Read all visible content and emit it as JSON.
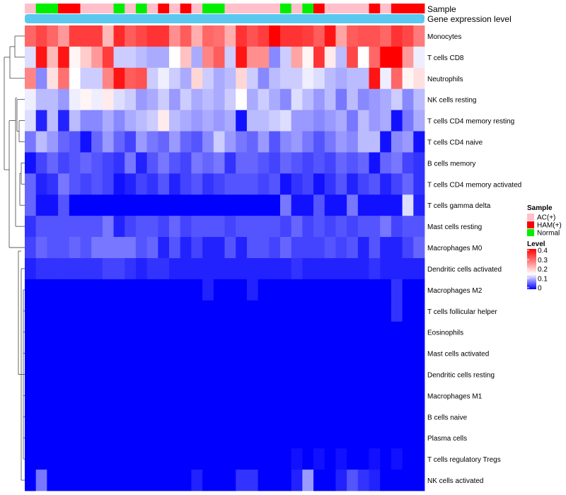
{
  "chart_data": {
    "type": "heatmap",
    "title": "",
    "annotation_tracks": {
      "sample_label": "Sample",
      "gene_expression_label": "Gene expression level",
      "gene_expression_color": "#5BC8F0"
    },
    "legend": {
      "placement": "right",
      "sample_title": "Sample",
      "sample_groups": [
        {
          "label": "AC(+)",
          "color": "#FFC0CB"
        },
        {
          "label": "HAM(+)",
          "color": "#FF0000"
        },
        {
          "label": "Normal",
          "color": "#00EE00"
        }
      ],
      "level_title": "Level",
      "level_ticks": [
        "0.4",
        "0.3",
        "0.2",
        "0.1",
        "0"
      ],
      "level_tick_values": [
        0.4,
        0.3,
        0.2,
        0.1,
        0.0
      ],
      "color_scale": {
        "low": "#0000FF",
        "mid": "#FFFFFF",
        "high": "#FF0000",
        "min": 0,
        "mid_value": 0.15,
        "max": 0.4
      }
    },
    "samples": [
      "AC(+)",
      "Normal",
      "Normal",
      "HAM(+)",
      "HAM(+)",
      "AC(+)",
      "AC(+)",
      "AC(+)",
      "Normal",
      "AC(+)",
      "Normal",
      "AC(+)",
      "HAM(+)",
      "AC(+)",
      "HAM(+)",
      "AC(+)",
      "Normal",
      "Normal",
      "AC(+)",
      "AC(+)",
      "AC(+)",
      "AC(+)",
      "AC(+)",
      "Normal",
      "AC(+)",
      "Normal",
      "HAM(+)",
      "AC(+)",
      "AC(+)",
      "AC(+)",
      "AC(+)",
      "HAM(+)",
      "AC(+)",
      "HAM(+)",
      "HAM(+)",
      "HAM(+)"
    ],
    "rows": [
      {
        "name": "Monocytes",
        "values": [
          0.3,
          0.33,
          0.3,
          0.25,
          0.34,
          0.34,
          0.34,
          0.22,
          0.36,
          0.31,
          0.33,
          0.35,
          0.35,
          0.26,
          0.31,
          0.23,
          0.3,
          0.29,
          0.23,
          0.35,
          0.32,
          0.34,
          0.4,
          0.35,
          0.35,
          0.34,
          0.31,
          0.38,
          0.24,
          0.31,
          0.32,
          0.32,
          0.3,
          0.35,
          0.33,
          0.28
        ]
      },
      {
        "name": "T cells CD8",
        "values": [
          0.13,
          0.38,
          0.22,
          0.38,
          0.16,
          0.2,
          0.25,
          0.34,
          0.12,
          0.12,
          0.11,
          0.1,
          0.1,
          0.15,
          0.21,
          0.1,
          0.27,
          0.31,
          0.12,
          0.38,
          0.26,
          0.26,
          0.08,
          0.12,
          0.24,
          0.16,
          0.35,
          0.17,
          0.11,
          0.33,
          0.15,
          0.3,
          0.4,
          0.4,
          0.25,
          0.14
        ]
      },
      {
        "name": "Neutrophils",
        "values": [
          0.27,
          0.08,
          0.18,
          0.29,
          0.15,
          0.12,
          0.12,
          0.27,
          0.38,
          0.31,
          0.32,
          0.12,
          0.14,
          0.12,
          0.1,
          0.19,
          0.12,
          0.1,
          0.11,
          0.19,
          0.12,
          0.08,
          0.11,
          0.12,
          0.12,
          0.14,
          0.13,
          0.11,
          0.1,
          0.11,
          0.11,
          0.38,
          0.14,
          0.3,
          0.16,
          0.18
        ]
      },
      {
        "name": "NK cells resting",
        "values": [
          0.14,
          0.11,
          0.11,
          0.09,
          0.14,
          0.16,
          0.14,
          0.17,
          0.13,
          0.12,
          0.09,
          0.1,
          0.12,
          0.09,
          0.12,
          0.1,
          0.11,
          0.1,
          0.12,
          0.15,
          0.1,
          0.12,
          0.1,
          0.08,
          0.13,
          0.11,
          0.09,
          0.11,
          0.07,
          0.11,
          0.08,
          0.09,
          0.1,
          0.12,
          0.08,
          0.11
        ]
      },
      {
        "name": "T cells CD4 memory resting",
        "values": [
          0.13,
          0.02,
          0.11,
          0.02,
          0.11,
          0.08,
          0.08,
          0.1,
          0.08,
          0.1,
          0.11,
          0.12,
          0.17,
          0.11,
          0.1,
          0.09,
          0.1,
          0.09,
          0.1,
          0.01,
          0.11,
          0.11,
          0.12,
          0.13,
          0.09,
          0.09,
          0.08,
          0.09,
          0.1,
          0.07,
          0.11,
          0.09,
          0.1,
          0.01,
          0.07,
          0.1
        ]
      },
      {
        "name": "T cells CD4 naive",
        "values": [
          0.07,
          0.11,
          0.09,
          0.06,
          0.05,
          0.01,
          0.06,
          0.09,
          0.06,
          0.04,
          0.09,
          0.07,
          0.06,
          0.09,
          0.06,
          0.05,
          0.08,
          0.12,
          0.09,
          0.07,
          0.06,
          0.09,
          0.05,
          0.08,
          0.09,
          0.07,
          0.05,
          0.07,
          0.09,
          0.08,
          0.11,
          0.11,
          0.01,
          0.08,
          0.09,
          0.01
        ]
      },
      {
        "name": "B cells memory",
        "values": [
          0.01,
          0.04,
          0.06,
          0.04,
          0.05,
          0.06,
          0.05,
          0.04,
          0.03,
          0.07,
          0.02,
          0.05,
          0.07,
          0.05,
          0.04,
          0.07,
          0.06,
          0.07,
          0.03,
          0.06,
          0.06,
          0.05,
          0.04,
          0.06,
          0.05,
          0.04,
          0.05,
          0.04,
          0.06,
          0.05,
          0.06,
          0.01,
          0.06,
          0.07,
          0.04,
          0.03
        ]
      },
      {
        "name": "T cells CD4 memory activated",
        "values": [
          0.06,
          0.02,
          0.03,
          0.07,
          0.05,
          0.04,
          0.05,
          0.04,
          0.01,
          0.02,
          0.04,
          0.03,
          0.05,
          0.02,
          0.04,
          0.05,
          0.03,
          0.04,
          0.05,
          0.05,
          0.05,
          0.04,
          0.05,
          0.01,
          0.03,
          0.04,
          0.01,
          0.03,
          0.05,
          0.02,
          0.04,
          0.05,
          0.02,
          0.04,
          0.06,
          0.03
        ]
      },
      {
        "name": "T cells gamma delta",
        "values": [
          0.06,
          0.01,
          0.01,
          0.05,
          0.0,
          0.0,
          0.0,
          0.0,
          0.0,
          0.0,
          0.0,
          0.0,
          0.0,
          0.0,
          0.0,
          0.0,
          0.0,
          0.0,
          0.0,
          0.0,
          0.0,
          0.0,
          0.0,
          0.07,
          0.01,
          0.01,
          0.05,
          0.01,
          0.01,
          0.07,
          0.01,
          0.01,
          0.01,
          0.01,
          0.13,
          0.02
        ]
      },
      {
        "name": "Mast cells resting",
        "values": [
          0.03,
          0.05,
          0.05,
          0.05,
          0.05,
          0.05,
          0.05,
          0.07,
          0.02,
          0.04,
          0.05,
          0.05,
          0.04,
          0.06,
          0.04,
          0.05,
          0.05,
          0.05,
          0.04,
          0.05,
          0.05,
          0.05,
          0.05,
          0.04,
          0.06,
          0.04,
          0.05,
          0.04,
          0.05,
          0.04,
          0.05,
          0.05,
          0.07,
          0.04,
          0.05,
          0.05
        ]
      },
      {
        "name": "Macrophages M0",
        "values": [
          0.04,
          0.06,
          0.05,
          0.05,
          0.06,
          0.05,
          0.07,
          0.07,
          0.07,
          0.07,
          0.05,
          0.06,
          0.02,
          0.05,
          0.02,
          0.04,
          0.02,
          0.02,
          0.05,
          0.02,
          0.05,
          0.05,
          0.04,
          0.06,
          0.04,
          0.04,
          0.04,
          0.05,
          0.04,
          0.05,
          0.02,
          0.05,
          0.02,
          0.02,
          0.04,
          0.06
        ]
      },
      {
        "name": "Dendritic cells activated",
        "values": [
          0.02,
          0.03,
          0.03,
          0.03,
          0.03,
          0.03,
          0.03,
          0.04,
          0.04,
          0.03,
          0.02,
          0.03,
          0.03,
          0.02,
          0.02,
          0.02,
          0.02,
          0.02,
          0.02,
          0.02,
          0.02,
          0.02,
          0.02,
          0.02,
          0.03,
          0.02,
          0.02,
          0.02,
          0.02,
          0.02,
          0.02,
          0.03,
          0.02,
          0.02,
          0.02,
          0.02
        ]
      },
      {
        "name": "Macrophages M2",
        "values": [
          0.0,
          0.0,
          0.0,
          0.0,
          0.0,
          0.0,
          0.0,
          0.0,
          0.0,
          0.0,
          0.0,
          0.0,
          0.0,
          0.0,
          0.0,
          0.0,
          0.02,
          0.0,
          0.0,
          0.0,
          0.02,
          0.0,
          0.0,
          0.0,
          0.0,
          0.0,
          0.0,
          0.0,
          0.0,
          0.0,
          0.0,
          0.0,
          0.0,
          0.03,
          0.0,
          0.0
        ]
      },
      {
        "name": "T cells follicular helper",
        "values": [
          0.0,
          0.0,
          0.0,
          0.0,
          0.0,
          0.0,
          0.0,
          0.0,
          0.0,
          0.0,
          0.0,
          0.0,
          0.0,
          0.0,
          0.0,
          0.0,
          0.0,
          0.0,
          0.0,
          0.0,
          0.0,
          0.0,
          0.0,
          0.0,
          0.0,
          0.0,
          0.0,
          0.0,
          0.0,
          0.0,
          0.0,
          0.0,
          0.0,
          0.03,
          0.0,
          0.0
        ]
      },
      {
        "name": "Eosinophils",
        "values": [
          0.0,
          0.0,
          0.0,
          0.0,
          0.0,
          0.0,
          0.0,
          0.0,
          0.0,
          0.0,
          0.0,
          0.0,
          0.0,
          0.0,
          0.0,
          0.0,
          0.0,
          0.0,
          0.0,
          0.0,
          0.0,
          0.0,
          0.0,
          0.0,
          0.0,
          0.0,
          0.0,
          0.0,
          0.0,
          0.0,
          0.0,
          0.0,
          0.0,
          0.0,
          0.0,
          0.0
        ]
      },
      {
        "name": "Mast cells activated",
        "values": [
          0.0,
          0.0,
          0.0,
          0.0,
          0.0,
          0.0,
          0.0,
          0.0,
          0.0,
          0.0,
          0.0,
          0.0,
          0.0,
          0.0,
          0.0,
          0.0,
          0.0,
          0.0,
          0.0,
          0.0,
          0.0,
          0.0,
          0.0,
          0.0,
          0.0,
          0.0,
          0.0,
          0.0,
          0.0,
          0.0,
          0.0,
          0.0,
          0.0,
          0.0,
          0.0,
          0.0
        ]
      },
      {
        "name": "Dendritic cells resting",
        "values": [
          0.0,
          0.0,
          0.0,
          0.0,
          0.0,
          0.0,
          0.0,
          0.0,
          0.0,
          0.0,
          0.0,
          0.0,
          0.0,
          0.0,
          0.0,
          0.0,
          0.0,
          0.0,
          0.0,
          0.0,
          0.0,
          0.0,
          0.0,
          0.0,
          0.0,
          0.0,
          0.0,
          0.0,
          0.0,
          0.0,
          0.0,
          0.0,
          0.0,
          0.0,
          0.0,
          0.0
        ]
      },
      {
        "name": "Macrophages M1",
        "values": [
          0.0,
          0.0,
          0.0,
          0.0,
          0.0,
          0.0,
          0.0,
          0.0,
          0.0,
          0.0,
          0.0,
          0.0,
          0.0,
          0.0,
          0.0,
          0.0,
          0.0,
          0.0,
          0.0,
          0.0,
          0.0,
          0.0,
          0.0,
          0.0,
          0.0,
          0.0,
          0.0,
          0.0,
          0.0,
          0.0,
          0.0,
          0.0,
          0.0,
          0.0,
          0.0,
          0.0
        ]
      },
      {
        "name": "B cells naive",
        "values": [
          0.0,
          0.0,
          0.0,
          0.0,
          0.0,
          0.0,
          0.0,
          0.0,
          0.0,
          0.0,
          0.0,
          0.0,
          0.0,
          0.0,
          0.0,
          0.0,
          0.0,
          0.0,
          0.0,
          0.0,
          0.0,
          0.0,
          0.0,
          0.0,
          0.0,
          0.0,
          0.0,
          0.0,
          0.0,
          0.0,
          0.0,
          0.0,
          0.0,
          0.0,
          0.0,
          0.0
        ]
      },
      {
        "name": "Plasma cells",
        "values": [
          0.0,
          0.0,
          0.0,
          0.0,
          0.0,
          0.0,
          0.0,
          0.0,
          0.0,
          0.0,
          0.0,
          0.0,
          0.0,
          0.0,
          0.0,
          0.0,
          0.0,
          0.0,
          0.0,
          0.0,
          0.0,
          0.0,
          0.0,
          0.0,
          0.0,
          0.0,
          0.0,
          0.0,
          0.0,
          0.0,
          0.0,
          0.0,
          0.0,
          0.0,
          0.0,
          0.0
        ]
      },
      {
        "name": "T cells regulatory  Tregs",
        "values": [
          0.0,
          0.0,
          0.0,
          0.0,
          0.0,
          0.0,
          0.0,
          0.0,
          0.0,
          0.0,
          0.0,
          0.0,
          0.0,
          0.0,
          0.0,
          0.0,
          0.0,
          0.0,
          0.0,
          0.0,
          0.0,
          0.0,
          0.0,
          0.0,
          0.01,
          0.0,
          0.01,
          0.0,
          0.01,
          0.0,
          0.0,
          0.01,
          0.0,
          0.01,
          0.0,
          0.0
        ]
      },
      {
        "name": "NK cells activated",
        "values": [
          0.0,
          0.07,
          0.0,
          0.0,
          0.0,
          0.0,
          0.0,
          0.0,
          0.0,
          0.0,
          0.0,
          0.0,
          0.0,
          0.0,
          0.0,
          0.02,
          0.0,
          0.0,
          0.0,
          0.03,
          0.03,
          0.0,
          0.0,
          0.0,
          0.02,
          0.09,
          0.0,
          0.0,
          0.02,
          0.05,
          0.03,
          0.02,
          0.0,
          0.0,
          0.0,
          0.0
        ]
      }
    ]
  }
}
